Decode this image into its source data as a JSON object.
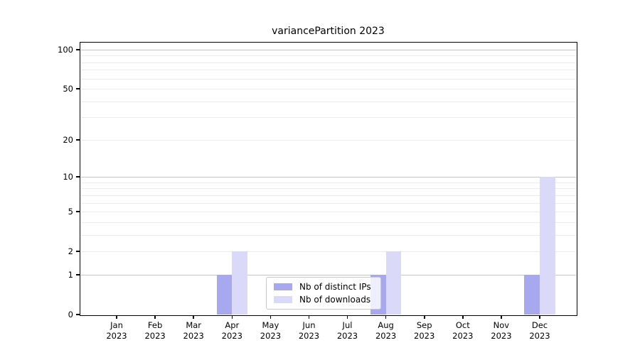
{
  "chart_data": {
    "type": "bar",
    "title": "variancePartition 2023",
    "categories": [
      "Jan",
      "Feb",
      "Mar",
      "Apr",
      "May",
      "Jun",
      "Jul",
      "Aug",
      "Sep",
      "Oct",
      "Nov",
      "Dec"
    ],
    "year_label": "2023",
    "series": [
      {
        "name": "Nb of distinct IPs",
        "color": "#a8a8ef",
        "values": [
          0,
          0,
          0,
          1,
          0,
          0,
          0,
          1,
          0,
          0,
          0,
          1
        ]
      },
      {
        "name": "Nb of downloads",
        "color": "#dadaf8",
        "values": [
          0,
          0,
          0,
          2,
          0,
          0,
          0,
          2,
          0,
          0,
          0,
          10
        ]
      }
    ],
    "y_axis": {
      "scale": "log1p",
      "ticks": [
        0,
        1,
        2,
        5,
        10,
        20,
        50,
        100
      ],
      "major_gridlines": [
        1,
        10,
        100
      ],
      "minor_gridlines": [
        2,
        3,
        4,
        5,
        6,
        7,
        8,
        9,
        20,
        30,
        40,
        50,
        60,
        70,
        80,
        90
      ],
      "max": 113
    },
    "xlabel": "",
    "ylabel": "",
    "grid": true,
    "legend_position": "lower center"
  },
  "colors": {
    "background": "#ffffff",
    "spine": "#000000",
    "major_grid": "#c4c4c4",
    "minor_grid": "#eaeaea",
    "legend_border": "#c9c9c9"
  }
}
